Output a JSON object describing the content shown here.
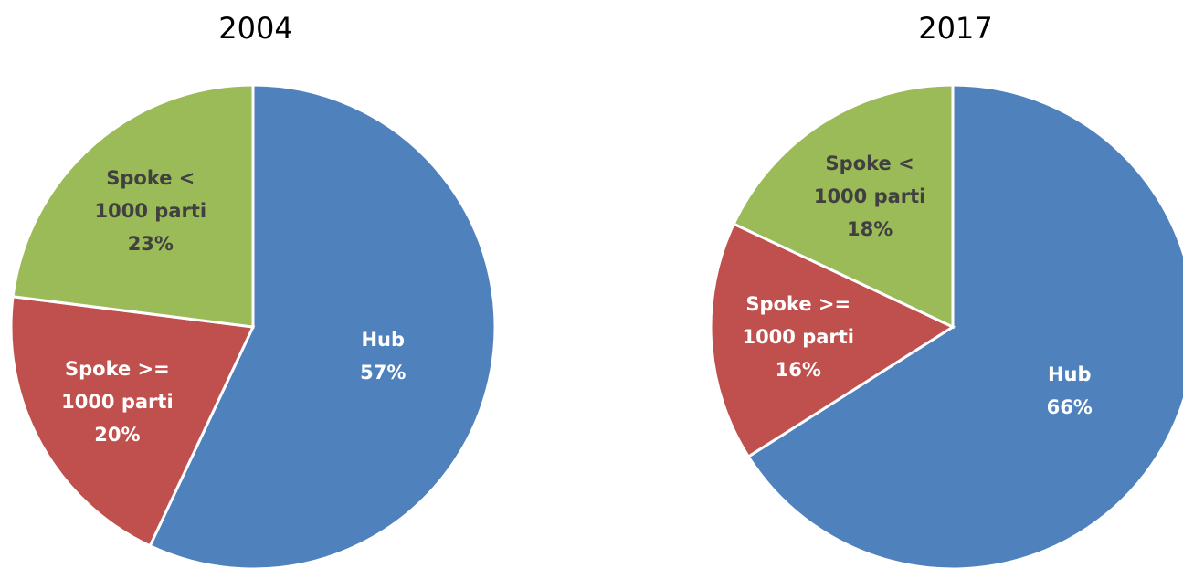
{
  "chart_data": [
    {
      "type": "pie",
      "title": "2004",
      "categories": [
        "Hub",
        "Spoke >= 1000 parti",
        "Spoke < 1000 parti"
      ],
      "values": [
        57,
        20,
        23
      ],
      "value_labels": [
        "57%",
        "20%",
        "23%"
      ],
      "colors": [
        "#4f81bd",
        "#c0504d",
        "#9bbb59"
      ],
      "label_colors": [
        "#ffffff",
        "#ffffff",
        "#404040"
      ]
    },
    {
      "type": "pie",
      "title": "2017",
      "categories": [
        "Hub",
        "Spoke >= 1000 parti",
        "Spoke < 1000 parti"
      ],
      "values": [
        66,
        16,
        18
      ],
      "value_labels": [
        "66%",
        "16%",
        "18%"
      ],
      "colors": [
        "#4f81bd",
        "#c0504d",
        "#9bbb59"
      ],
      "label_colors": [
        "#ffffff",
        "#ffffff",
        "#404040"
      ]
    }
  ]
}
